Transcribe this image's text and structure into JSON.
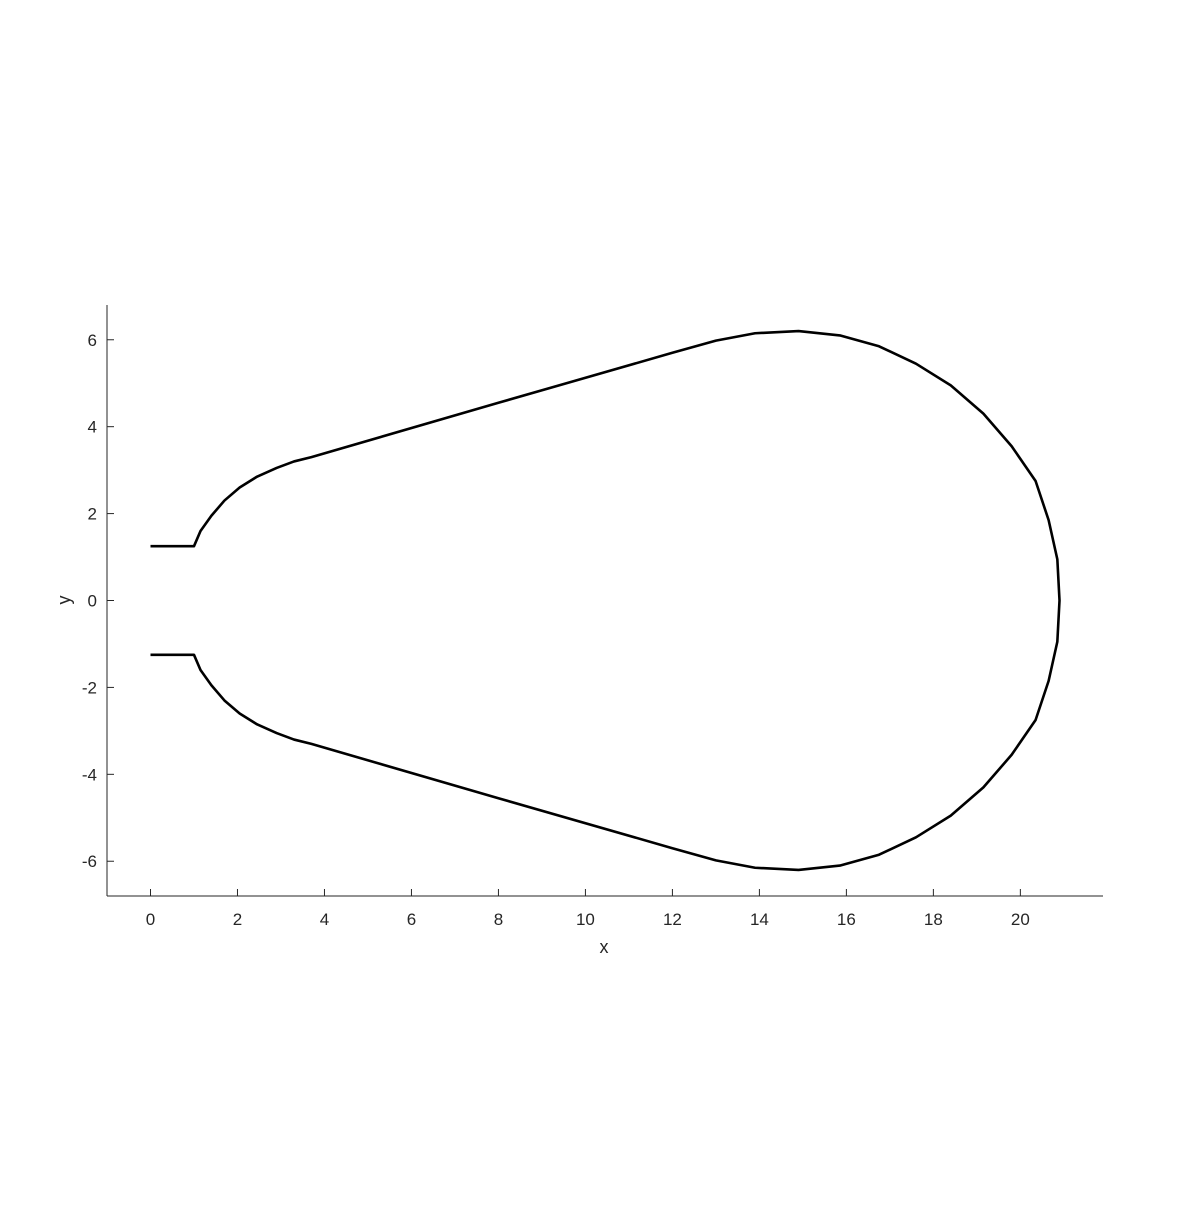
{
  "chart_data": {
    "type": "line",
    "xlabel": "x",
    "ylabel": "y",
    "xlim": [
      -1,
      21.9
    ],
    "ylim": [
      -6.8,
      6.8
    ],
    "xticks": [
      0,
      2,
      4,
      6,
      8,
      10,
      12,
      14,
      16,
      18,
      20
    ],
    "yticks": [
      -6,
      -4,
      -2,
      0,
      2,
      4,
      6
    ],
    "xtick_labels": [
      "0",
      "2",
      "4",
      "6",
      "8",
      "10",
      "12",
      "14",
      "16",
      "18",
      "20"
    ],
    "ytick_labels": [
      "-6",
      "-4",
      "-2",
      "0",
      "2",
      "4",
      "6"
    ],
    "grid": false,
    "line_color": "#000000",
    "series": [
      {
        "points": [
          [
            0.0,
            -1.25
          ],
          [
            1.0,
            -1.25
          ],
          [
            1.15,
            -1.6
          ],
          [
            1.4,
            -1.95
          ],
          [
            1.7,
            -2.3
          ],
          [
            2.05,
            -2.6
          ],
          [
            2.45,
            -2.85
          ],
          [
            2.9,
            -3.05
          ],
          [
            3.3,
            -3.2
          ],
          [
            3.7,
            -3.3
          ],
          [
            8.0,
            -4.55
          ],
          [
            12.0,
            -5.7
          ],
          [
            13.0,
            -5.98
          ],
          [
            13.9,
            -6.15
          ],
          [
            14.9,
            -6.2
          ],
          [
            15.85,
            -6.1
          ],
          [
            16.75,
            -5.85
          ],
          [
            17.6,
            -5.45
          ],
          [
            18.4,
            -4.95
          ],
          [
            19.15,
            -4.3
          ],
          [
            19.8,
            -3.55
          ],
          [
            20.35,
            -2.75
          ],
          [
            20.65,
            -1.85
          ],
          [
            20.85,
            -0.95
          ],
          [
            20.9,
            0.0
          ],
          [
            20.85,
            0.95
          ],
          [
            20.65,
            1.85
          ],
          [
            20.35,
            2.75
          ],
          [
            19.8,
            3.55
          ],
          [
            19.15,
            4.3
          ],
          [
            18.4,
            4.95
          ],
          [
            17.6,
            5.45
          ],
          [
            16.75,
            5.85
          ],
          [
            15.85,
            6.1
          ],
          [
            14.9,
            6.2
          ],
          [
            13.9,
            6.15
          ],
          [
            13.0,
            5.98
          ],
          [
            12.0,
            5.7
          ],
          [
            8.0,
            4.55
          ],
          [
            3.7,
            3.3
          ],
          [
            3.3,
            3.2
          ],
          [
            2.9,
            3.05
          ],
          [
            2.45,
            2.85
          ],
          [
            2.05,
            2.6
          ],
          [
            1.7,
            2.3
          ],
          [
            1.4,
            1.95
          ],
          [
            1.15,
            1.6
          ],
          [
            1.0,
            1.25
          ],
          [
            0.0,
            1.25
          ]
        ]
      }
    ]
  }
}
